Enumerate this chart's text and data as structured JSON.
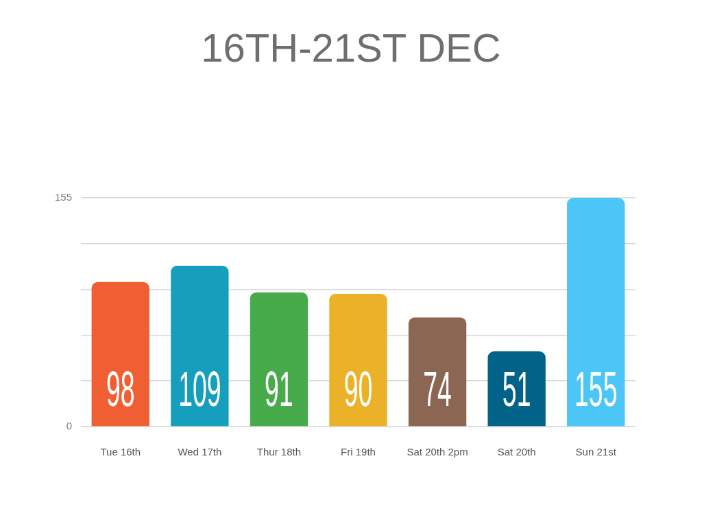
{
  "chart_data": {
    "type": "bar",
    "title": "16TH-21ST DEC",
    "categories": [
      "Tue 16th",
      "Wed 17th",
      "Thur 18th",
      "Fri 19th",
      "Sat 20th 2pm",
      "Sat 20th",
      "Sun 21st"
    ],
    "values": [
      98,
      109,
      91,
      90,
      74,
      51,
      155
    ],
    "colors": [
      "#f05f33",
      "#159fbc",
      "#48ab4b",
      "#ebb128",
      "#8b6652",
      "#036288",
      "#4bc6f7"
    ],
    "ylim": [
      0,
      155
    ],
    "yticks": [
      0,
      {
        "value": 31,
        "label": null
      },
      {
        "value": 62,
        "label": null
      },
      {
        "value": 93,
        "label": null
      },
      {
        "value": 124,
        "label": null
      },
      155
    ],
    "grid": "y",
    "data_labels": true
  }
}
